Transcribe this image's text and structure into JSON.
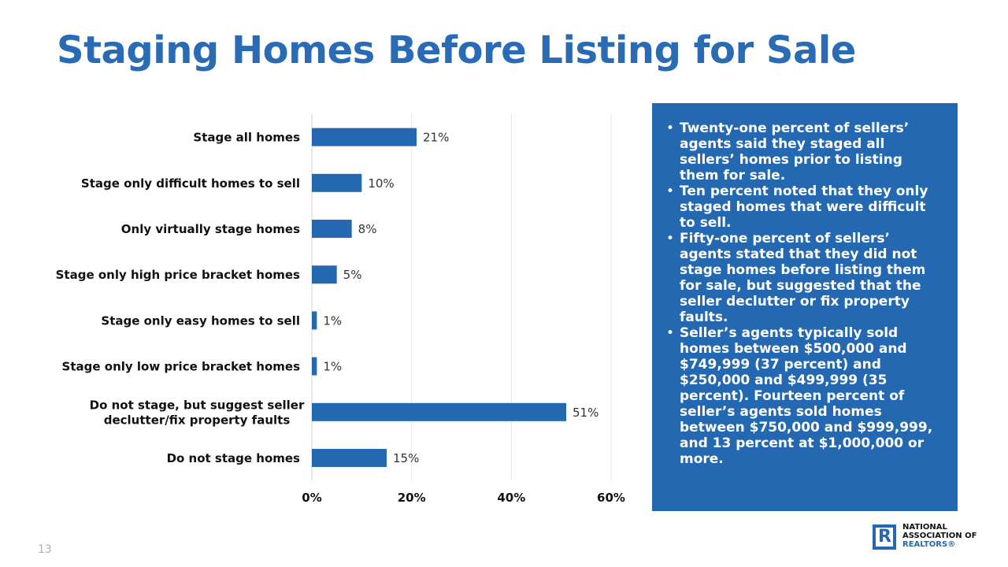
{
  "title": "Staging Homes Before Listing for Sale",
  "page_number": "13",
  "colors": {
    "accent": "#2a6bb5",
    "bar": "#2368b1",
    "box": "#2368b1"
  },
  "chart_data": {
    "type": "bar",
    "orientation": "horizontal",
    "categories": [
      "Stage all homes",
      "Stage only difficult homes to sell",
      "Only virtually stage homes",
      "Stage only high price bracket homes",
      "Stage only easy homes to sell",
      "Stage only low price bracket homes",
      "Do not stage, but suggest seller declutter/fix property faults",
      "Do not stage homes"
    ],
    "category_lines": [
      [
        "Stage all homes"
      ],
      [
        "Stage only difficult homes to sell"
      ],
      [
        "Only virtually stage homes"
      ],
      [
        "Stage only high price bracket homes"
      ],
      [
        "Stage only easy homes to sell"
      ],
      [
        "Stage only low price bracket homes"
      ],
      [
        "Do not stage, but suggest seller",
        "declutter/fix property faults"
      ],
      [
        "Do not stage homes"
      ]
    ],
    "values": [
      21,
      10,
      8,
      5,
      1,
      1,
      51,
      15
    ],
    "value_labels": [
      "21%",
      "10%",
      "8%",
      "5%",
      "1%",
      "1%",
      "51%",
      "15%"
    ],
    "xlim": [
      0,
      60
    ],
    "xticks": [
      0,
      20,
      40,
      60
    ],
    "xtick_labels": [
      "0%",
      "20%",
      "40%",
      "60%"
    ],
    "grid": true,
    "title": "",
    "xlabel": "",
    "ylabel": ""
  },
  "info_box": {
    "bullets": [
      "Twenty-one percent of sellers’ agents said they staged all sellers’ homes prior to listing them for sale.",
      "Ten percent noted that they only staged homes that were difficult to sell.",
      "Fifty-one percent of sellers’ agents stated that they did not stage homes before listing them for sale, but suggested that the seller declutter or fix property faults.",
      "Seller’s agents typically sold homes between $500,000 and $749,999 (37 percent) and $250,000 and $499,999 (35 percent). Fourteen percent of seller’s agents sold homes between $750,000 and $999,999, and 13 percent at $1,000,000 or more."
    ]
  },
  "logo": {
    "line1": "NATIONAL",
    "line2": "ASSOCIATION OF",
    "line3": "REALTORS",
    "reg": "®"
  }
}
